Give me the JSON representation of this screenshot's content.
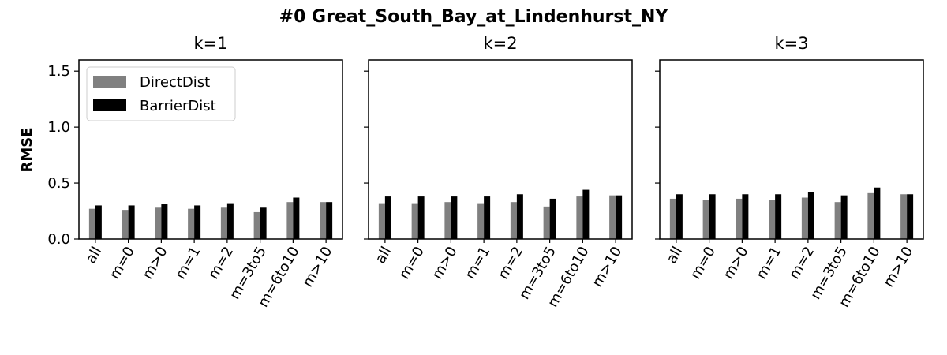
{
  "chart_data": {
    "type": "bar",
    "title": "#0 Great_South_Bay_at_Lindenhurst_NY",
    "ylabel": "RMSE",
    "ylim": [
      0,
      1.6
    ],
    "yticks": [
      "0.0",
      "0.5",
      "1.0",
      "1.5"
    ],
    "categories": [
      "all",
      "m=0",
      "m>0",
      "m=1",
      "m=2",
      "m=3to5",
      "m=6to10",
      "m>10"
    ],
    "legend": {
      "placement": "upper-left",
      "entries": [
        "DirectDist",
        "BarrierDist"
      ]
    },
    "series_colors": {
      "DirectDist": "#808080",
      "BarrierDist": "#000000"
    },
    "panels": [
      {
        "title": "k=1",
        "series": [
          {
            "name": "DirectDist",
            "values": [
              0.27,
              0.26,
              0.28,
              0.27,
              0.28,
              0.24,
              0.33,
              0.33
            ]
          },
          {
            "name": "BarrierDist",
            "values": [
              0.3,
              0.3,
              0.31,
              0.3,
              0.32,
              0.28,
              0.37,
              0.33
            ]
          }
        ]
      },
      {
        "title": "k=2",
        "series": [
          {
            "name": "DirectDist",
            "values": [
              0.32,
              0.32,
              0.33,
              0.32,
              0.33,
              0.29,
              0.38,
              0.39
            ]
          },
          {
            "name": "BarrierDist",
            "values": [
              0.38,
              0.38,
              0.38,
              0.38,
              0.4,
              0.36,
              0.44,
              0.39
            ]
          }
        ]
      },
      {
        "title": "k=3",
        "series": [
          {
            "name": "DirectDist",
            "values": [
              0.36,
              0.35,
              0.36,
              0.35,
              0.37,
              0.33,
              0.41,
              0.4
            ]
          },
          {
            "name": "BarrierDist",
            "values": [
              0.4,
              0.4,
              0.4,
              0.4,
              0.42,
              0.39,
              0.46,
              0.4
            ]
          }
        ]
      }
    ]
  }
}
